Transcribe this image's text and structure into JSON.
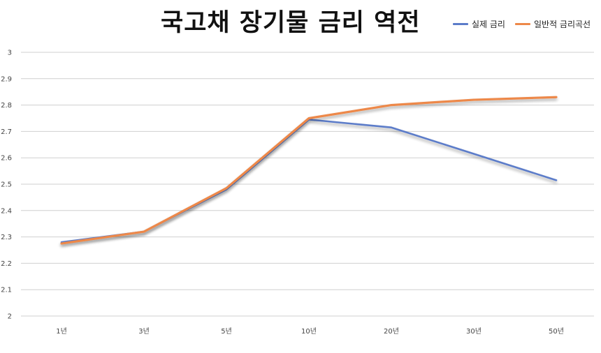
{
  "chart_data": {
    "type": "line",
    "title": "국고채 장기물 금리 역전",
    "categories": [
      "1년",
      "3년",
      "5년",
      "10년",
      "20년",
      "30년",
      "50년"
    ],
    "series": [
      {
        "name": "실제 금리",
        "color": "#5B7CC9",
        "values": [
          2.28,
          2.32,
          2.48,
          2.745,
          2.715,
          2.615,
          2.515
        ]
      },
      {
        "name": "일반적 금리곡선",
        "color": "#ED8849",
        "values": [
          2.275,
          2.32,
          2.485,
          2.75,
          2.8,
          2.82,
          2.83
        ]
      }
    ],
    "ylim": [
      2,
      3
    ],
    "yticks": [
      "2",
      "2.1",
      "2.2",
      "2.3",
      "2.4",
      "2.5",
      "2.6",
      "2.7",
      "2.8",
      "2.9",
      "3"
    ],
    "grid": true,
    "legend_position": "top-right",
    "xlabel": "",
    "ylabel": ""
  }
}
